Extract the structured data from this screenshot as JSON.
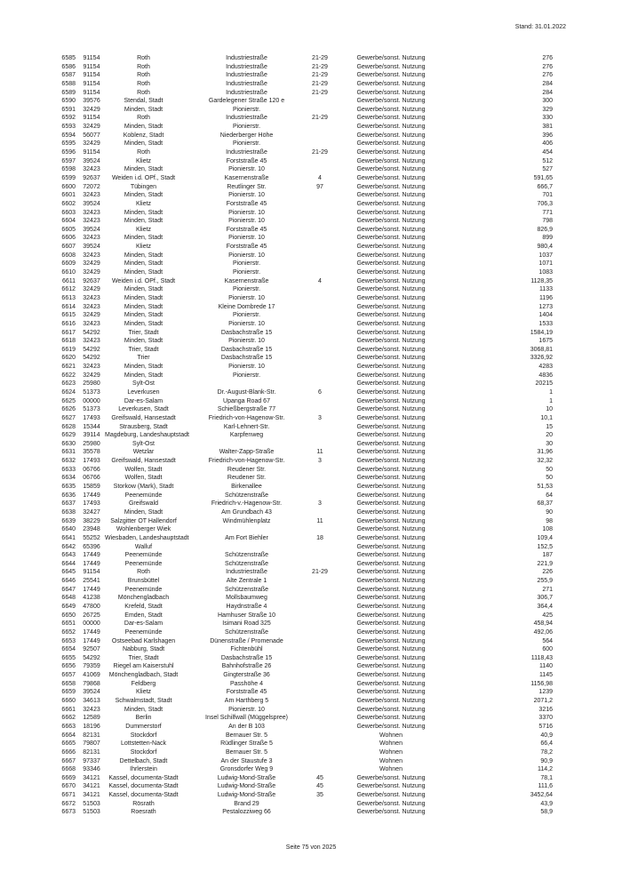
{
  "header": {
    "stand": "Stand: 31.01.2022"
  },
  "footer": {
    "page_label": "Seite 75 von 2025"
  },
  "table": {
    "columns": [
      "lfd_nr",
      "plz",
      "ort",
      "strasse",
      "hausnummer",
      "nutzung",
      "wert"
    ],
    "rows": [
      [
        "6585",
        "91154",
        "Roth",
        "Industriestraße",
        "21-29",
        "Gewerbe/sonst. Nutzung",
        "276"
      ],
      [
        "6586",
        "91154",
        "Roth",
        "Industriestraße",
        "21-29",
        "Gewerbe/sonst. Nutzung",
        "276"
      ],
      [
        "6587",
        "91154",
        "Roth",
        "Industriestraße",
        "21-29",
        "Gewerbe/sonst. Nutzung",
        "276"
      ],
      [
        "6588",
        "91154",
        "Roth",
        "Industriestraße",
        "21-29",
        "Gewerbe/sonst. Nutzung",
        "284"
      ],
      [
        "6589",
        "91154",
        "Roth",
        "Industriestraße",
        "21-29",
        "Gewerbe/sonst. Nutzung",
        "284"
      ],
      [
        "6590",
        "39576",
        "Stendal, Stadt",
        "Gardelegener Straße 120 e",
        "",
        "Gewerbe/sonst. Nutzung",
        "300"
      ],
      [
        "6591",
        "32429",
        "Minden, Stadt",
        "Pionierstr.",
        "",
        "Gewerbe/sonst. Nutzung",
        "329"
      ],
      [
        "6592",
        "91154",
        "Roth",
        "Industriestraße",
        "21-29",
        "Gewerbe/sonst. Nutzung",
        "330"
      ],
      [
        "6593",
        "32429",
        "Minden, Stadt",
        "Pionierstr.",
        "",
        "Gewerbe/sonst. Nutzung",
        "381"
      ],
      [
        "6594",
        "56077",
        "Koblenz, Stadt",
        "Niederberger Höhe",
        "",
        "Gewerbe/sonst. Nutzung",
        "396"
      ],
      [
        "6595",
        "32429",
        "Minden, Stadt",
        "Pionierstr.",
        "",
        "Gewerbe/sonst. Nutzung",
        "406"
      ],
      [
        "6596",
        "91154",
        "Roth",
        "Industriestraße",
        "21-29",
        "Gewerbe/sonst. Nutzung",
        "454"
      ],
      [
        "6597",
        "39524",
        "Klietz",
        "Forststraße 45",
        "",
        "Gewerbe/sonst. Nutzung",
        "512"
      ],
      [
        "6598",
        "32423",
        "Minden, Stadt",
        "Pionierstr. 10",
        "",
        "Gewerbe/sonst. Nutzung",
        "527"
      ],
      [
        "6599",
        "92637",
        "Weiden i.d. OPf., Stadt",
        "Kasernenstraße",
        "4",
        "Gewerbe/sonst. Nutzung",
        "591,65"
      ],
      [
        "6600",
        "72072",
        "Tübingen",
        "Reutlinger Str.",
        "97",
        "Gewerbe/sonst. Nutzung",
        "666,7"
      ],
      [
        "6601",
        "32423",
        "Minden, Stadt",
        "Pionierstr. 10",
        "",
        "Gewerbe/sonst. Nutzung",
        "701"
      ],
      [
        "6602",
        "39524",
        "Klietz",
        "Forststraße 45",
        "",
        "Gewerbe/sonst. Nutzung",
        "706,3"
      ],
      [
        "6603",
        "32423",
        "Minden, Stadt",
        "Pionierstr. 10",
        "",
        "Gewerbe/sonst. Nutzung",
        "771"
      ],
      [
        "6604",
        "32423",
        "Minden, Stadt",
        "Pionierstr. 10",
        "",
        "Gewerbe/sonst. Nutzung",
        "798"
      ],
      [
        "6605",
        "39524",
        "Klietz",
        "Forststraße 45",
        "",
        "Gewerbe/sonst. Nutzung",
        "826,9"
      ],
      [
        "6606",
        "32423",
        "Minden, Stadt",
        "Pionierstr. 10",
        "",
        "Gewerbe/sonst. Nutzung",
        "899"
      ],
      [
        "6607",
        "39524",
        "Klietz",
        "Forststraße 45",
        "",
        "Gewerbe/sonst. Nutzung",
        "980,4"
      ],
      [
        "6608",
        "32423",
        "Minden, Stadt",
        "Pionierstr. 10",
        "",
        "Gewerbe/sonst. Nutzung",
        "1037"
      ],
      [
        "6609",
        "32429",
        "Minden, Stadt",
        "Pionierstr.",
        "",
        "Gewerbe/sonst. Nutzung",
        "1071"
      ],
      [
        "6610",
        "32429",
        "Minden, Stadt",
        "Pionierstr.",
        "",
        "Gewerbe/sonst. Nutzung",
        "1083"
      ],
      [
        "6611",
        "92637",
        "Weiden i.d. OPf., Stadt",
        "Kasernenstraße",
        "4",
        "Gewerbe/sonst. Nutzung",
        "1128,35"
      ],
      [
        "6612",
        "32429",
        "Minden, Stadt",
        "Pionierstr.",
        "",
        "Gewerbe/sonst. Nutzung",
        "1133"
      ],
      [
        "6613",
        "32423",
        "Minden, Stadt",
        "Pionierstr. 10",
        "",
        "Gewerbe/sonst. Nutzung",
        "1196"
      ],
      [
        "6614",
        "32423",
        "Minden, Stadt",
        "Kleine Dombrede 17",
        "",
        "Gewerbe/sonst. Nutzung",
        "1273"
      ],
      [
        "6615",
        "32429",
        "Minden, Stadt",
        "Pionierstr.",
        "",
        "Gewerbe/sonst. Nutzung",
        "1404"
      ],
      [
        "6616",
        "32423",
        "Minden, Stadt",
        "Pionierstr. 10",
        "",
        "Gewerbe/sonst. Nutzung",
        "1533"
      ],
      [
        "6617",
        "54292",
        "Trier, Stadt",
        "Dasbachstraße 15",
        "",
        "Gewerbe/sonst. Nutzung",
        "1584,19"
      ],
      [
        "6618",
        "32423",
        "Minden, Stadt",
        "Pionierstr. 10",
        "",
        "Gewerbe/sonst. Nutzung",
        "1675"
      ],
      [
        "6619",
        "54292",
        "Trier, Stadt",
        "Dasbachstraße 15",
        "",
        "Gewerbe/sonst. Nutzung",
        "3068,81"
      ],
      [
        "6620",
        "54292",
        "Trier",
        "Dasbachstraße 15",
        "",
        "Gewerbe/sonst. Nutzung",
        "3326,92"
      ],
      [
        "6621",
        "32423",
        "Minden, Stadt",
        "Pionierstr. 10",
        "",
        "Gewerbe/sonst. Nutzung",
        "4283"
      ],
      [
        "6622",
        "32429",
        "Minden, Stadt",
        "Pionierstr.",
        "",
        "Gewerbe/sonst. Nutzung",
        "4836"
      ],
      [
        "6623",
        "25980",
        "Sylt-Ost",
        "",
        "",
        "Gewerbe/sonst. Nutzung",
        "20215"
      ],
      [
        "6624",
        "51373",
        "Leverkusen",
        "Dr.-August-Blank-Str.",
        "6",
        "Gewerbe/sonst. Nutzung",
        "1"
      ],
      [
        "6625",
        "00000",
        "Dar-es-Salam",
        "Upanga Road 67",
        "",
        "Gewerbe/sonst. Nutzung",
        "1"
      ],
      [
        "6626",
        "51373",
        "Leverkusen, Stadt",
        "Schießbergstraße 77",
        "",
        "Gewerbe/sonst. Nutzung",
        "10"
      ],
      [
        "6627",
        "17493",
        "Greifswald, Hansestadt",
        "Friedrich-von-Hagenow-Str.",
        "3",
        "Gewerbe/sonst. Nutzung",
        "10,1"
      ],
      [
        "6628",
        "15344",
        "Strausberg, Stadt",
        "Karl-Lehnert-Str.",
        "",
        "Gewerbe/sonst. Nutzung",
        "15"
      ],
      [
        "6629",
        "39114",
        "Magdeburg, Landeshauptstadt",
        "Karpfenweg",
        "",
        "Gewerbe/sonst. Nutzung",
        "20"
      ],
      [
        "6630",
        "25980",
        "Sylt-Ost",
        "",
        "",
        "Gewerbe/sonst. Nutzung",
        "30"
      ],
      [
        "6631",
        "35578",
        "Wetzlar",
        "Walter-Zapp-Straße",
        "11",
        "Gewerbe/sonst. Nutzung",
        "31,96"
      ],
      [
        "6632",
        "17493",
        "Greifswald, Hansestadt",
        "Friedrich-von-Hagenow-Str.",
        "3",
        "Gewerbe/sonst. Nutzung",
        "32,32"
      ],
      [
        "6633",
        "06766",
        "Wolfen, Stadt",
        "Reudener Str.",
        "",
        "Gewerbe/sonst. Nutzung",
        "50"
      ],
      [
        "6634",
        "06766",
        "Wolfen, Stadt",
        "Reudener Str.",
        "",
        "Gewerbe/sonst. Nutzung",
        "50"
      ],
      [
        "6635",
        "15859",
        "Storkow (Mark), Stadt",
        "Birkenallee",
        "",
        "Gewerbe/sonst. Nutzung",
        "51,53"
      ],
      [
        "6636",
        "17449",
        "Peenemünde",
        "Schützenstraße",
        "",
        "Gewerbe/sonst. Nutzung",
        "64"
      ],
      [
        "6637",
        "17493",
        "Greifswald",
        "Friedrich-v.-Hagenow-Str.",
        "3",
        "Gewerbe/sonst. Nutzung",
        "68,37"
      ],
      [
        "6638",
        "32427",
        "Minden, Stadt",
        "Am Grundbach 43",
        "",
        "Gewerbe/sonst. Nutzung",
        "90"
      ],
      [
        "6639",
        "38229",
        "Salzgitter OT Hallendorf",
        "Windmühlenplatz",
        "11",
        "Gewerbe/sonst. Nutzung",
        "98"
      ],
      [
        "6640",
        "23948",
        "Wohlenberger Wiek",
        "",
        "",
        "Gewerbe/sonst. Nutzung",
        "108"
      ],
      [
        "6641",
        "55252",
        "Wiesbaden, Landeshauptstadt",
        "Am Fort Biehler",
        "18",
        "Gewerbe/sonst. Nutzung",
        "109,4"
      ],
      [
        "6642",
        "65396",
        "Walluf",
        "",
        "",
        "Gewerbe/sonst. Nutzung",
        "152,5"
      ],
      [
        "6643",
        "17449",
        "Peenemünde",
        "Schützenstraße",
        "",
        "Gewerbe/sonst. Nutzung",
        "187"
      ],
      [
        "6644",
        "17449",
        "Peenemünde",
        "Schützenstraße",
        "",
        "Gewerbe/sonst. Nutzung",
        "221,9"
      ],
      [
        "6645",
        "91154",
        "Roth",
        "Industriestraße",
        "21-29",
        "Gewerbe/sonst. Nutzung",
        "226"
      ],
      [
        "6646",
        "25541",
        "Brunsbüttel",
        "Alte Zentrale 1",
        "",
        "Gewerbe/sonst. Nutzung",
        "255,9"
      ],
      [
        "6647",
        "17449",
        "Peenemünde",
        "Schützenstraße",
        "",
        "Gewerbe/sonst. Nutzung",
        "271"
      ],
      [
        "6648",
        "41238",
        "Mönchengladbach",
        "Mollsbaumweg",
        "",
        "Gewerbe/sonst. Nutzung",
        "306,7"
      ],
      [
        "6649",
        "47800",
        "Krefeld, Stadt",
        "Haydnstraße 4",
        "",
        "Gewerbe/sonst. Nutzung",
        "364,4"
      ],
      [
        "6650",
        "26725",
        "Emden, Stadt",
        "Hamhuser Straße 10",
        "",
        "Gewerbe/sonst. Nutzung",
        "425"
      ],
      [
        "6651",
        "00000",
        "Dar-es-Salam",
        "Isimani Road 325",
        "",
        "Gewerbe/sonst. Nutzung",
        "458,94"
      ],
      [
        "6652",
        "17449",
        "Peenemünde",
        "Schützenstraße",
        "",
        "Gewerbe/sonst. Nutzung",
        "492,06"
      ],
      [
        "6653",
        "17449",
        "Ostseebad Karlshagen",
        "Dünenstraße / Promenade",
        "",
        "Gewerbe/sonst. Nutzung",
        "564"
      ],
      [
        "6654",
        "92507",
        "Nabburg, Stadt",
        "Fichtenbühl",
        "",
        "Gewerbe/sonst. Nutzung",
        "600"
      ],
      [
        "6655",
        "54292",
        "Trier, Stadt",
        "Dasbachstraße 15",
        "",
        "Gewerbe/sonst. Nutzung",
        "1118,43"
      ],
      [
        "6656",
        "79359",
        "Riegel am Kaiserstuhl",
        "Bahnhofstraße 26",
        "",
        "Gewerbe/sonst. Nutzung",
        "1140"
      ],
      [
        "6657",
        "41069",
        "Mönchengladbach, Stadt",
        "Gingterstraße 36",
        "",
        "Gewerbe/sonst. Nutzung",
        "1145"
      ],
      [
        "6658",
        "79868",
        "Feldberg",
        "Passhöhe 4",
        "",
        "Gewerbe/sonst. Nutzung",
        "1156,98"
      ],
      [
        "6659",
        "39524",
        "Klietz",
        "Forststraße 45",
        "",
        "Gewerbe/sonst. Nutzung",
        "1239"
      ],
      [
        "6660",
        "34613",
        "Schwalmstadt, Stadt",
        "Am Harthberg 5",
        "",
        "Gewerbe/sonst. Nutzung",
        "2071,2"
      ],
      [
        "6661",
        "32423",
        "Minden, Stadt",
        "Pionierstr. 10",
        "",
        "Gewerbe/sonst. Nutzung",
        "3216"
      ],
      [
        "6662",
        "12589",
        "Berlin",
        "Insel Schilfwall (Müggelspree)",
        "",
        "Gewerbe/sonst. Nutzung",
        "3370"
      ],
      [
        "6663",
        "18196",
        "Dummerstorf",
        "An der B 103",
        "",
        "Gewerbe/sonst. Nutzung",
        "5716"
      ],
      [
        "6664",
        "82131",
        "Stockdorf",
        "Bernauer Str. 5",
        "",
        "Wohnen",
        "40,9"
      ],
      [
        "6665",
        "79807",
        "Lottstetten-Nack",
        "Rüdlinger Straße 5",
        "",
        "Wohnen",
        "66,4"
      ],
      [
        "6666",
        "82131",
        "Stockdorf",
        "Bernauer Str. 5",
        "",
        "Wohnen",
        "78,2"
      ],
      [
        "6667",
        "97337",
        "Dettelbach, Stadt",
        "An der Staustufe 3",
        "",
        "Wohnen",
        "90,9"
      ],
      [
        "6668",
        "93346",
        "Ihrlerstein",
        "Gronsdorfer Weg 9",
        "",
        "Wohnen",
        "114,2"
      ],
      [
        "6669",
        "34121",
        "Kassel, documenta-Stadt",
        "Ludwig-Mond-Straße",
        "45",
        "Gewerbe/sonst. Nutzung",
        "78,1"
      ],
      [
        "6670",
        "34121",
        "Kassel, documenta-Stadt",
        "Ludwig-Mond-Straße",
        "45",
        "Gewerbe/sonst. Nutzung",
        "111,6"
      ],
      [
        "6671",
        "34121",
        "Kassel, documenta-Stadt",
        "Ludwig-Mond-Straße",
        "35",
        "Gewerbe/sonst. Nutzung",
        "3452,64"
      ],
      [
        "6672",
        "51503",
        "Rösrath",
        "Brand 29",
        "",
        "Gewerbe/sonst. Nutzung",
        "43,9"
      ],
      [
        "6673",
        "51503",
        "Roesrath",
        "Pestalozziweg 66",
        "",
        "Gewerbe/sonst. Nutzung",
        "58,9"
      ]
    ]
  }
}
